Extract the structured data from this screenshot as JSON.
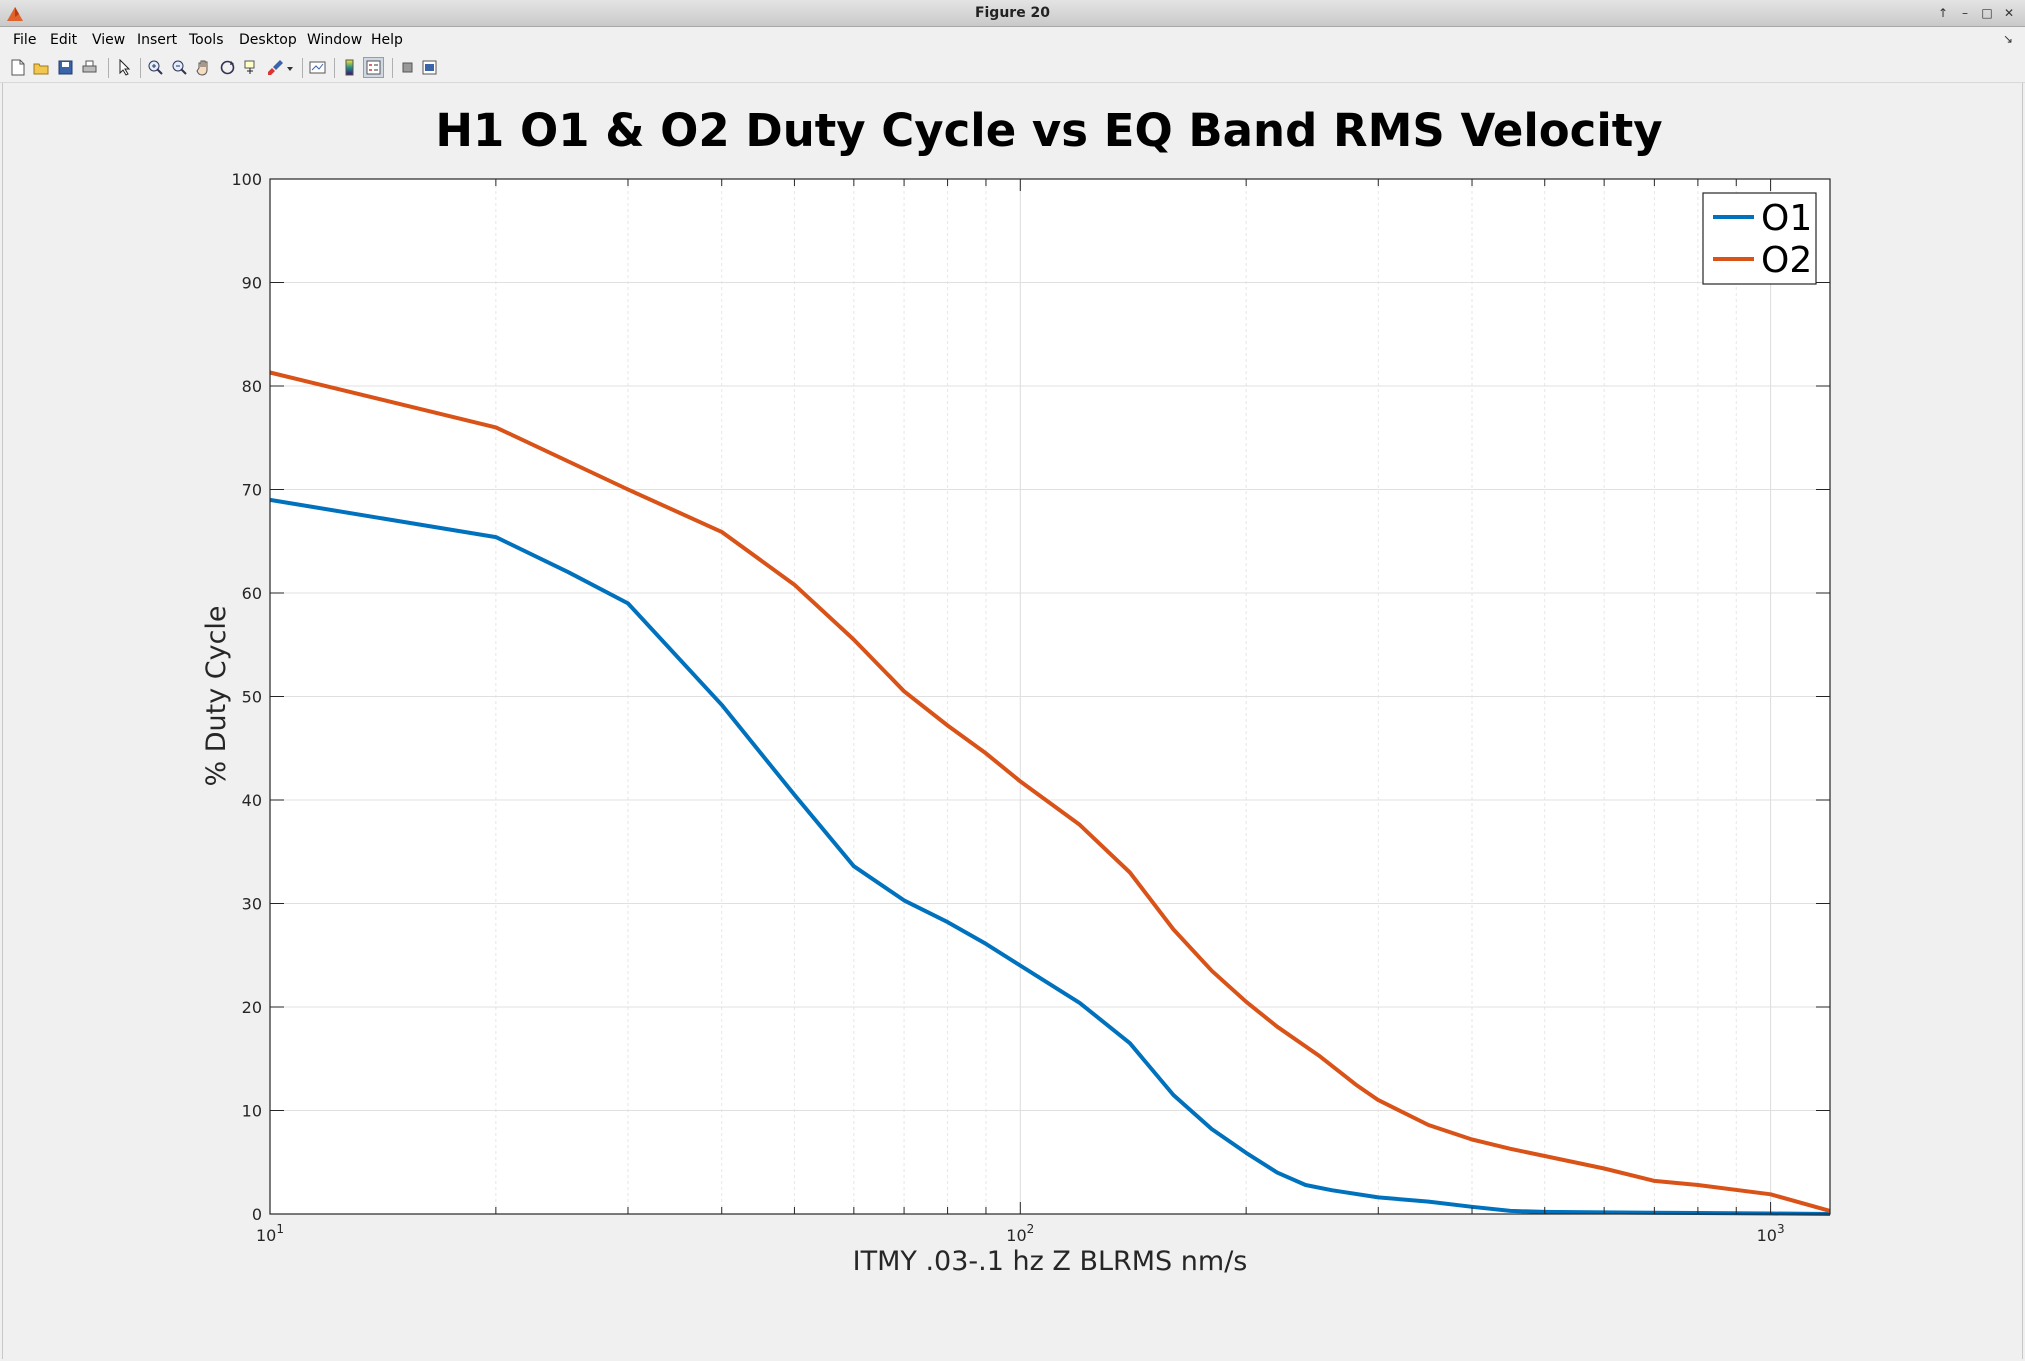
{
  "window": {
    "title": "Figure 20"
  },
  "menu": {
    "items": [
      "File",
      "Edit",
      "View",
      "Insert",
      "Tools",
      "Desktop",
      "Window",
      "Help"
    ]
  },
  "toolbar": {
    "icons": [
      "new-figure-icon",
      "open-file-icon",
      "save-icon",
      "print-icon",
      "edit-plot-arrow-icon",
      "zoom-in-icon",
      "zoom-out-icon",
      "pan-hand-icon",
      "rotate-3d-icon",
      "data-cursor-icon",
      "brush-icon",
      "brush-dropdown-icon",
      "link-plot-icon",
      "insert-colorbar-icon",
      "insert-legend-icon",
      "hide-plot-tools-icon",
      "show-plot-tools-icon"
    ]
  },
  "colors": {
    "o1": "#0072BD",
    "o2": "#D95319",
    "grid": "#e0e0e0",
    "axes_bg": "#ffffff"
  },
  "chart_data": {
    "type": "line",
    "title": "H1 O1 & O2  Duty Cycle vs EQ Band RMS Velocity",
    "xlabel": "ITMY .03-.1 hz Z BLRMS nm/s",
    "ylabel": "% Duty Cycle",
    "xscale": "log",
    "xlim": [
      10,
      1200
    ],
    "ylim": [
      0,
      100
    ],
    "yticks": [
      0,
      10,
      20,
      30,
      40,
      50,
      60,
      70,
      80,
      90,
      100
    ],
    "xticks": [
      {
        "value": 10,
        "base": "10",
        "exp": "1"
      },
      {
        "value": 100,
        "base": "10",
        "exp": "2"
      },
      {
        "value": 1000,
        "base": "10",
        "exp": "3"
      }
    ],
    "grid": true,
    "legend": {
      "position": "top-right",
      "entries": [
        "O1",
        "O2"
      ]
    },
    "series": [
      {
        "name": "O1",
        "color": "#0072BD",
        "x": [
          10,
          20,
          25,
          30,
          40,
          50,
          60,
          70,
          80,
          90,
          100,
          120,
          140,
          160,
          180,
          200,
          220,
          240,
          260,
          300,
          350,
          400,
          450,
          500,
          600,
          800,
          1000,
          1200
        ],
        "y": [
          69,
          65.4,
          62,
          59,
          49.2,
          40.5,
          33.6,
          30.3,
          28.2,
          26.1,
          24,
          20.4,
          16.5,
          11.5,
          8.2,
          5.9,
          4,
          2.8,
          2.3,
          1.6,
          1.2,
          0.7,
          0.3,
          0.2,
          0.15,
          0.1,
          0.05,
          0
        ]
      },
      {
        "name": "O2",
        "color": "#D95319",
        "x": [
          10,
          20,
          30,
          40,
          50,
          60,
          70,
          80,
          90,
          100,
          120,
          140,
          160,
          180,
          200,
          220,
          250,
          280,
          300,
          350,
          400,
          450,
          500,
          600,
          700,
          800,
          1000,
          1200
        ],
        "y": [
          81.3,
          76,
          70,
          65.9,
          60.8,
          55.5,
          50.5,
          47.2,
          44.5,
          41.8,
          37.6,
          33,
          27.5,
          23.5,
          20.5,
          18.1,
          15.3,
          12.5,
          11,
          8.6,
          7.2,
          6.3,
          5.6,
          4.4,
          3.2,
          2.8,
          1.9,
          0.3
        ]
      }
    ]
  }
}
